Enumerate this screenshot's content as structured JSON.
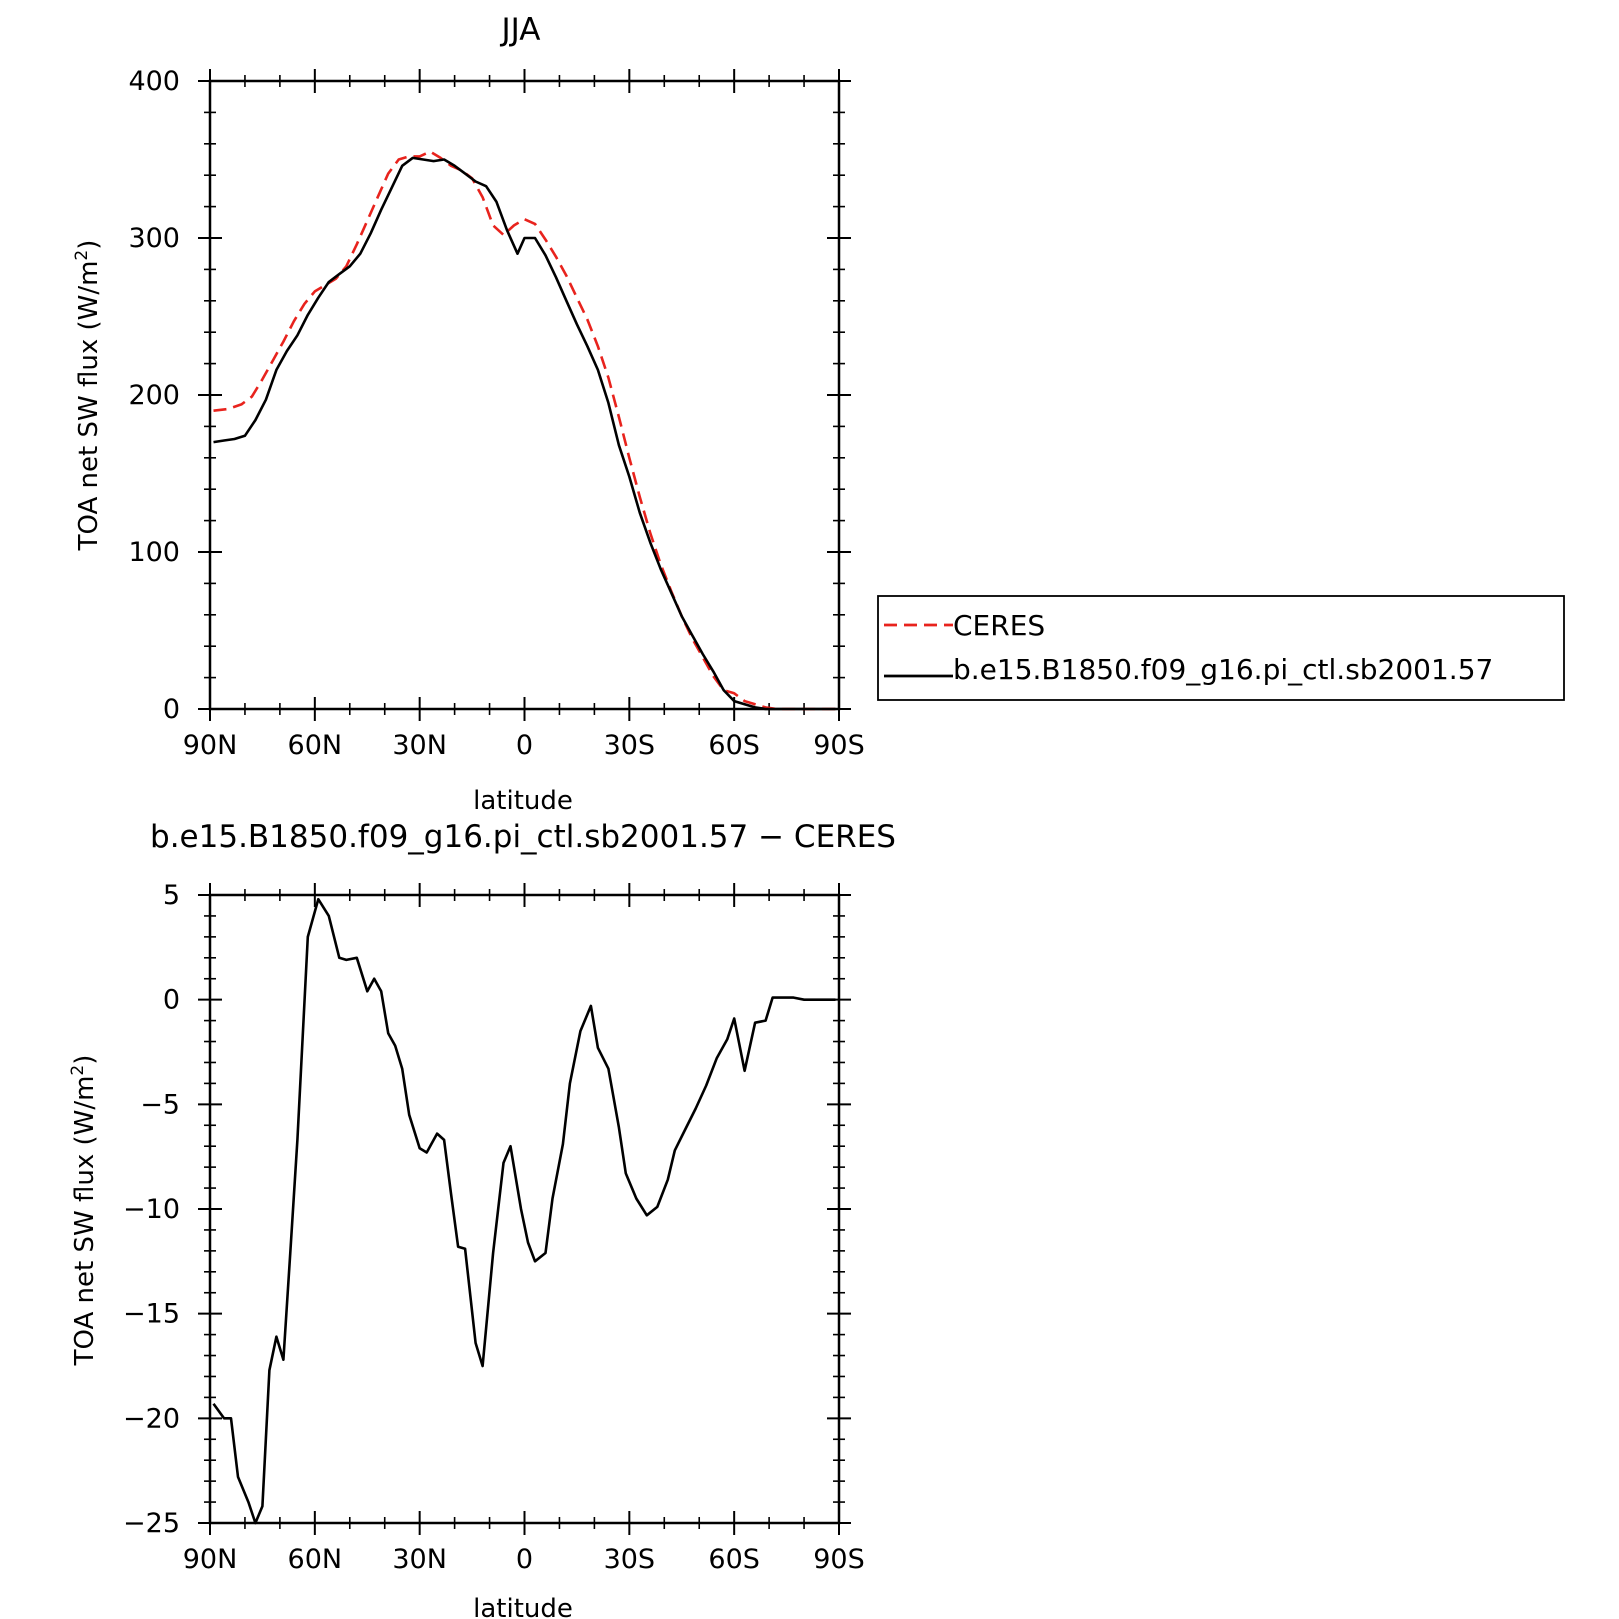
{
  "chart_data": [
    {
      "type": "line",
      "title": "JJA",
      "xlabel": "latitude",
      "ylabel": "TOA net SW flux (W/m²)",
      "ylabel_main": "TOA net SW flux (W/m",
      "ylabel_sup": "2",
      "ylabel_close": ")",
      "xlim": [
        90,
        -90
      ],
      "ylim": [
        0,
        400
      ],
      "xticks": [
        90,
        60,
        30,
        0,
        -30,
        -60,
        -90
      ],
      "xtick_labels": [
        "90N",
        "60N",
        "30N",
        "0",
        "30S",
        "60S",
        "90S"
      ],
      "yticks": [
        0,
        100,
        200,
        300,
        400
      ],
      "ytick_labels": [
        "0",
        "100",
        "200",
        "300",
        "400"
      ],
      "grid": false,
      "legend_position": "right",
      "series": [
        {
          "name": "CERES",
          "color": "#e8231d",
          "dash": "dashed",
          "x": [
            89,
            85,
            81,
            78,
            75,
            72,
            69,
            66,
            63,
            60,
            57,
            54,
            51,
            48,
            45,
            42,
            39,
            36,
            33,
            30,
            27,
            24,
            21,
            18,
            15,
            12,
            9,
            6,
            3,
            0,
            -3,
            -6,
            -9,
            -12,
            -15,
            -18,
            -21,
            -24,
            -27,
            -30,
            -33,
            -36,
            -39,
            -42,
            -45,
            -48,
            -51,
            -54,
            -57,
            -60,
            -63,
            -66,
            -69,
            -72,
            -75,
            -78,
            -81,
            -84,
            -87,
            -89
          ],
          "y": [
            190,
            191,
            194,
            199,
            210,
            222,
            234,
            247,
            258,
            266,
            270,
            274,
            282,
            296,
            311,
            326,
            341,
            350,
            352,
            352,
            355,
            351,
            346,
            343,
            338,
            326,
            308,
            302,
            308,
            312,
            309,
            299,
            288,
            276,
            262,
            248,
            231,
            211,
            186,
            160,
            135,
            112,
            92,
            75,
            59,
            45,
            33,
            21,
            12,
            10,
            5,
            3,
            1,
            0,
            0,
            0,
            0,
            0,
            0,
            0
          ]
        },
        {
          "name": "b.e15.B1850.f09_g16.pi_ctl.sb2001.57",
          "color": "#000000",
          "dash": "solid",
          "x": [
            89,
            86,
            83,
            80,
            77,
            74,
            71,
            68,
            65,
            62,
            59,
            56,
            53,
            50,
            47,
            44,
            41,
            38,
            35,
            32,
            29,
            26,
            23,
            20,
            17,
            14,
            11,
            8,
            5,
            2,
            0,
            -3,
            -6,
            -9,
            -12,
            -15,
            -18,
            -21,
            -24,
            -27,
            -30,
            -33,
            -36,
            -39,
            -42,
            -45,
            -48,
            -51,
            -54,
            -57,
            -60,
            -63,
            -66,
            -69,
            -72,
            -75,
            -78,
            -81,
            -84,
            -87,
            -89
          ],
          "y": [
            170,
            171,
            172,
            174,
            184,
            197,
            216,
            228,
            238,
            251,
            262,
            272,
            277,
            282,
            290,
            303,
            318,
            332,
            346,
            351,
            350,
            349,
            350,
            346,
            341,
            336,
            333,
            323,
            305,
            290,
            300,
            300,
            289,
            275,
            260,
            245,
            231,
            216,
            195,
            168,
            148,
            125,
            106,
            89,
            74,
            59,
            47,
            35,
            24,
            12,
            5,
            3,
            1,
            0,
            0,
            0,
            0,
            0,
            0,
            0,
            0
          ]
        }
      ]
    },
    {
      "type": "line",
      "title": "b.e15.B1850.f09_g16.pi_ctl.sb2001.57 − CERES",
      "xlabel": "latitude",
      "ylabel": "TOA net SW flux (W/m²)",
      "ylabel_main": "TOA net SW flux (W/m",
      "ylabel_sup": "2",
      "ylabel_close": ")",
      "xlim": [
        90,
        -90
      ],
      "ylim": [
        -25,
        5
      ],
      "xticks": [
        90,
        60,
        30,
        0,
        -30,
        -60,
        -90
      ],
      "xtick_labels": [
        "90N",
        "60N",
        "30N",
        "0",
        "30S",
        "60S",
        "90S"
      ],
      "yticks": [
        -25,
        -20,
        -15,
        -10,
        -5,
        0,
        5
      ],
      "ytick_labels": [
        "−25",
        "−20",
        "−15",
        "−10",
        "−5",
        "0",
        "5"
      ],
      "grid": false,
      "series": [
        {
          "color": "#000000",
          "dash": "solid",
          "x": [
            89,
            86,
            84,
            82,
            79,
            77,
            75,
            73,
            71,
            69,
            67,
            65,
            62,
            59,
            56,
            53,
            51,
            48,
            45,
            43,
            41,
            39,
            37,
            35,
            33,
            30,
            28,
            25,
            23,
            21,
            19,
            17,
            14,
            12,
            9,
            6,
            4,
            1,
            -1,
            -3,
            -6,
            -8,
            -11,
            -13,
            -16,
            -19,
            -21,
            -24,
            -27,
            -29,
            -32,
            -35,
            -38,
            -41,
            -43,
            -46,
            -49,
            -52,
            -55,
            -58,
            -60,
            -63,
            -66,
            -69,
            -71,
            -74,
            -77,
            -80,
            -83,
            -86,
            -89
          ],
          "y": [
            -19.3,
            -20,
            -20,
            -22.8,
            -24,
            -25,
            -24.2,
            -17.7,
            -16.1,
            -17.2,
            -12,
            -6.7,
            3,
            4.8,
            4,
            2,
            1.9,
            2,
            0.4,
            1,
            0.4,
            -1.6,
            -2.2,
            -3.3,
            -5.5,
            -7.1,
            -7.3,
            -6.4,
            -6.7,
            -9.3,
            -11.8,
            -11.9,
            -16.4,
            -17.5,
            -12.1,
            -7.8,
            -7,
            -10,
            -11.6,
            -12.5,
            -12.1,
            -9.5,
            -6.9,
            -4,
            -1.5,
            -0.3,
            -2.3,
            -3.3,
            -6.1,
            -8.3,
            -9.5,
            -10.3,
            -9.9,
            -8.6,
            -7.2,
            -6.2,
            -5.2,
            -4.1,
            -2.8,
            -1.9,
            -0.9,
            -3.4,
            -1.1,
            -1,
            0.1,
            0.1,
            0.1,
            0,
            0,
            0,
            0
          ]
        }
      ]
    }
  ]
}
